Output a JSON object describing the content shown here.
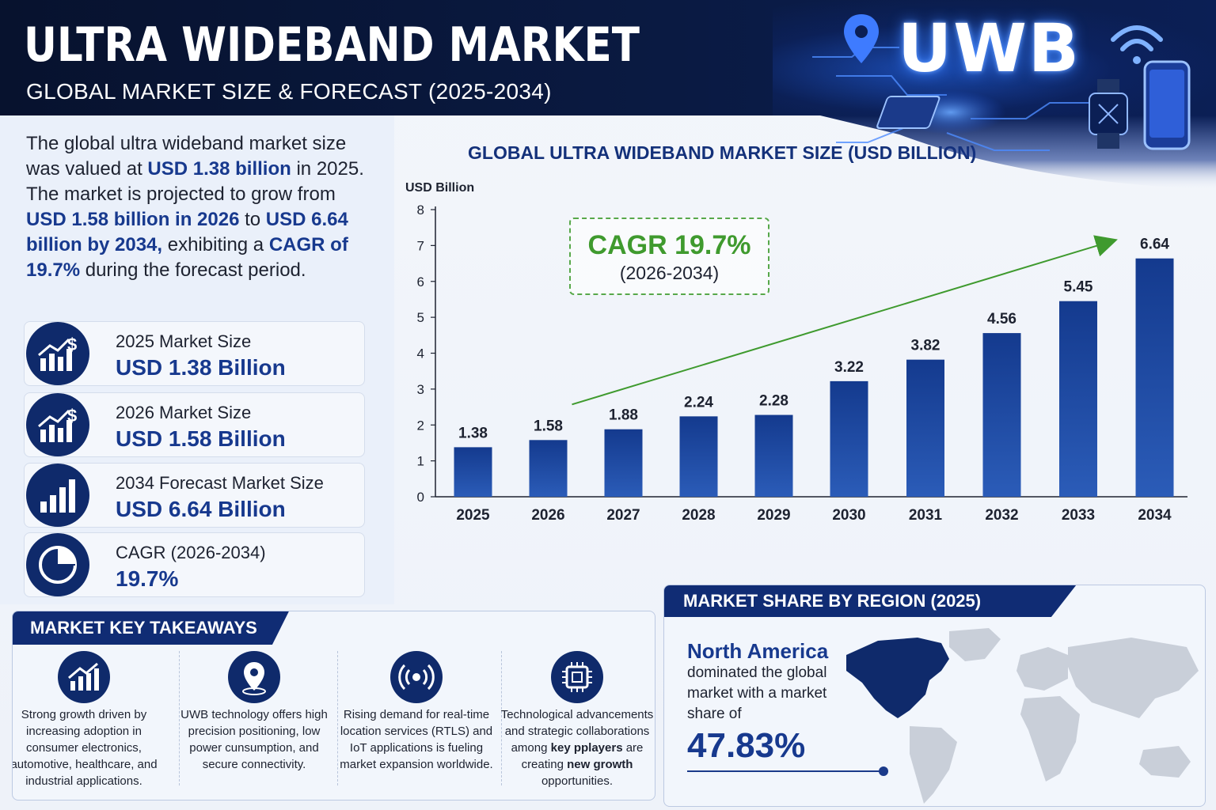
{
  "header": {
    "title": "ULTRA WIDEBAND MARKET",
    "subtitle": "GLOBAL MARKET SIZE & FORECAST (2025-2034)",
    "logo_text": "UWB"
  },
  "intro": {
    "p1": "The global ultra wideband market size was valued at ",
    "v1": "USD 1.38 billion",
    "p2": " in 2025. The market is projected to grow from ",
    "v2": "USD 1.58 billion in 2026",
    "p3": " to ",
    "v3": "USD 6.64 billion by 2034,",
    "p4": " exhibiting a ",
    "v4": "CAGR of 19.7%",
    "p5": " during the forecast period."
  },
  "stats": [
    {
      "label": "2025 Market Size",
      "value": "USD 1.38 Billion",
      "icon": "growth-dollar-icon"
    },
    {
      "label": "2026 Market Size",
      "value": "USD 1.58 Billion",
      "icon": "growth-dollar-icon"
    },
    {
      "label": "2034 Forecast Market Size",
      "value": "USD 6.64 Billion",
      "icon": "bar-chart-icon"
    },
    {
      "label": "CAGR (2026-2034)",
      "value": "19.7%",
      "icon": "pie-chart-icon"
    }
  ],
  "cagr_box": {
    "main": "CAGR 19.7%",
    "sub": "(2026-2034)"
  },
  "chart_data": {
    "type": "bar",
    "title": "GLOBAL ULTRA WIDEBAND MARKET SIZE (USD BILLION)",
    "ylabel": "USD Billion",
    "xlabel": "",
    "categories": [
      "2025",
      "2026",
      "2027",
      "2028",
      "2029",
      "2030",
      "2031",
      "2032",
      "2033",
      "2034"
    ],
    "values": [
      1.38,
      1.58,
      1.88,
      2.24,
      2.28,
      3.22,
      3.82,
      4.56,
      5.45,
      6.64
    ],
    "value_labels": [
      "1.38",
      "1.58",
      "1.88",
      "2.24",
      "2.28",
      "3.22",
      "3.82",
      "4.56",
      "5.45",
      "6.64"
    ],
    "ylim": [
      0,
      8
    ],
    "yticks": [
      "0",
      "1",
      "2",
      "3",
      "4",
      "5",
      "6",
      "7",
      "8"
    ],
    "grid": false,
    "bar_color": "#1a3f94",
    "trend_color": "#3f9a2e"
  },
  "takeaways": {
    "title": "MARKET KEY TAKEAWAYS",
    "items": [
      {
        "icon": "growth-chart-icon",
        "text": "Strong growth driven by increasing adoption in consumer electronics, automotive, healthcare, and industrial applications."
      },
      {
        "icon": "location-pin-icon",
        "text": "UWB technology offers high precision positioning, low power cunsumption, and secure connectivity."
      },
      {
        "icon": "signal-icon",
        "text": "Rising demand for real-time location services (RTLS) and IoT applications is fueling market expansion worldwide."
      },
      {
        "icon": "chip-icon",
        "text_a": "Technological advancements and strategic collaborations among ",
        "text_b": "key pplayers",
        "text_c": " are creating ",
        "text_d": "new growth",
        "text_e": " opportunities."
      }
    ]
  },
  "region": {
    "title": "MARKET SHARE BY REGION (2025)",
    "name": "North America",
    "desc": "dominated the global market with a market share of",
    "share": "47.83%"
  },
  "colors": {
    "navy": "#0f2a6b",
    "accent": "#17398e",
    "green": "#3f9a2e"
  }
}
